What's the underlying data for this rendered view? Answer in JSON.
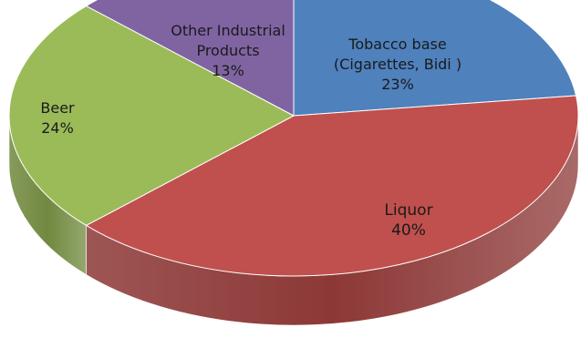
{
  "chart_data": {
    "type": "pie",
    "style": "3d",
    "slices": [
      {
        "label": [
          "Tobacco base",
          "(Cigarettes, Bidi )"
        ],
        "percent_label": "23%",
        "value": 23,
        "color": "#4F81BD",
        "side": "#385D8A"
      },
      {
        "label": [
          "Liquor"
        ],
        "percent_label": "40%",
        "value": 40,
        "color": "#C0504D",
        "side": "#8C3836"
      },
      {
        "label": [
          "Beer"
        ],
        "percent_label": "24%",
        "value": 24,
        "color": "#9BBB59",
        "side": "#71893F"
      },
      {
        "label": [
          "Other Industrial",
          "Products"
        ],
        "percent_label": "13%",
        "value": 13,
        "color": "#8064A2",
        "side": "#5C4776"
      }
    ],
    "legend": "none",
    "title": ""
  }
}
